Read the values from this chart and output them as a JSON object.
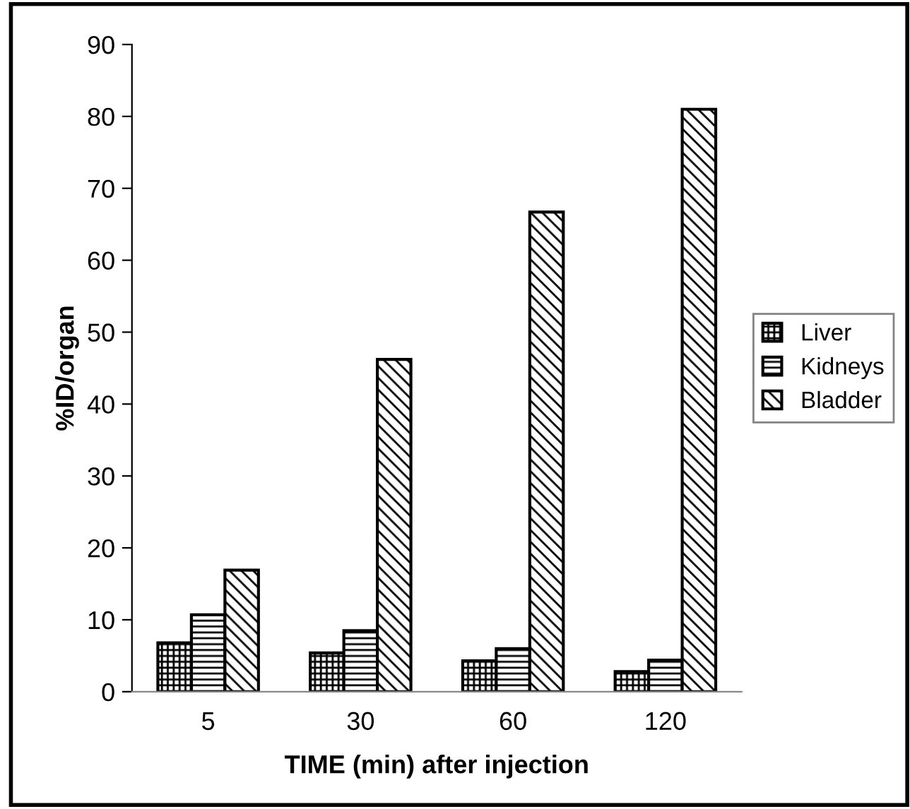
{
  "chart_data": {
    "type": "bar",
    "xlabel": "TIME (min) after injection",
    "ylabel": "%ID/organ",
    "categories": [
      "5",
      "30",
      "60",
      "120"
    ],
    "series": [
      {
        "name": "Liver",
        "color": "#000000",
        "values": [
          6.8,
          5.4,
          4.3,
          2.8
        ]
      },
      {
        "name": "Kidneys",
        "color": "#000000",
        "values": [
          10.7,
          8.5,
          6.0,
          4.4
        ]
      },
      {
        "name": "Bladder",
        "color": "#000000",
        "values": [
          16.9,
          46.2,
          66.7,
          81.0
        ]
      }
    ],
    "ylim": [
      0,
      90
    ],
    "yticks": [
      0,
      10,
      20,
      30,
      40,
      50,
      60,
      70,
      80,
      90
    ],
    "grid": false,
    "legend": "right"
  }
}
